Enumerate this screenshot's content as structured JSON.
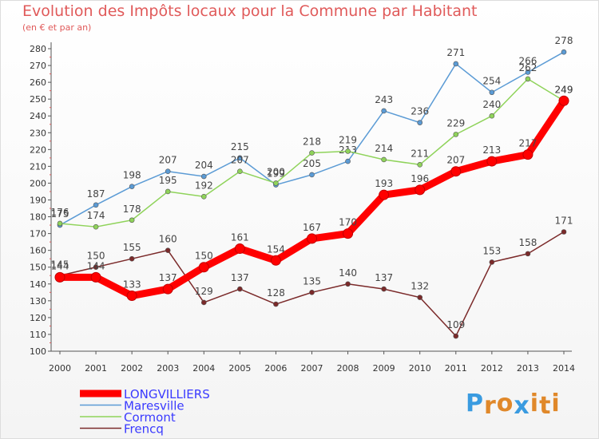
{
  "header": {
    "title": "Evolution des Impôts locaux pour la Commune par Habitant",
    "subtitle": "(en € et par an)"
  },
  "logo": {
    "letters": [
      "P",
      "r",
      "o",
      "x",
      "i",
      "t",
      "i"
    ],
    "colors": [
      "#3a9be0",
      "#e0882a",
      "#e0882a",
      "#3a9be0",
      "#e0882a",
      "#e0882a",
      "#e0882a"
    ]
  },
  "chart_data": {
    "type": "line",
    "x": [
      "2000",
      "2001",
      "2002",
      "2003",
      "2004",
      "2005",
      "2006",
      "2007",
      "2008",
      "2009",
      "2010",
      "2011",
      "2012",
      "2013",
      "2014"
    ],
    "ylim": [
      100,
      280
    ],
    "yticks": [
      "100",
      "110",
      "120",
      "130",
      "140",
      "150",
      "160",
      "170",
      "180",
      "190",
      "200",
      "210",
      "220",
      "230",
      "240",
      "250",
      "260",
      "270",
      "280"
    ],
    "grid": false,
    "legend_position": "bottom-left",
    "series": [
      {
        "name": "LONGVILLIERS",
        "color": "#ff0000",
        "label_color": "#3a3aff",
        "values": [
          144,
          144,
          133,
          137,
          150,
          161,
          154,
          167,
          170,
          193,
          196,
          207,
          213,
          217,
          249
        ]
      },
      {
        "name": "Maresville",
        "color": "#5b9bd5",
        "label_color": "#3a3aff",
        "values": [
          175,
          187,
          198,
          207,
          204,
          215,
          199,
          205,
          213,
          243,
          236,
          271,
          254,
          266,
          278
        ]
      },
      {
        "name": "Cormont",
        "color": "#8fd35a",
        "label_color": "#3a3aff",
        "values": [
          176,
          174,
          178,
          195,
          192,
          207,
          200,
          218,
          219,
          214,
          211,
          229,
          240,
          262,
          249
        ]
      },
      {
        "name": "Frencq",
        "color": "#7b2a2a",
        "label_color": "#3a3aff",
        "values": [
          145,
          150,
          155,
          160,
          129,
          137,
          128,
          135,
          140,
          137,
          132,
          109,
          153,
          158,
          171
        ]
      }
    ]
  }
}
